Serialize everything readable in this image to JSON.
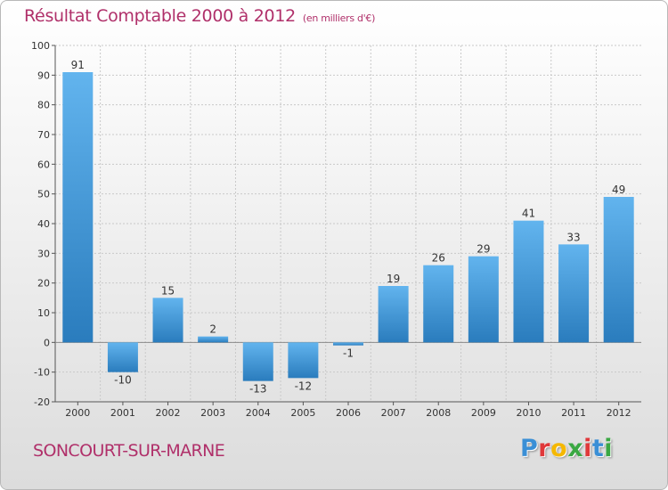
{
  "header": {
    "title": "Résultat Comptable 2000 à 2012",
    "subtitle": "(en milliers d'€)"
  },
  "footer": {
    "city": "SONCOURT-SUR-MARNE",
    "logo_letters": [
      "P",
      "r",
      "o",
      "x",
      "i",
      "t",
      "i"
    ],
    "logo_colors": [
      "#3a8fd6",
      "#e0383a",
      "#f5b800",
      "#3aa843",
      "#e0383a",
      "#3a8fd6",
      "#3aa843"
    ]
  },
  "colors": {
    "bar_light": "#62b4ee",
    "bar_dark": "#2a7cbd",
    "title": "#b0306a",
    "axis_text": "#333333",
    "grid": "#c9c9c9"
  },
  "chart_data": {
    "type": "bar",
    "title": "Résultat Comptable 2000 à 2012",
    "subtitle": "(en milliers d'€)",
    "xlabel": "",
    "ylabel": "",
    "categories": [
      "2000",
      "2001",
      "2002",
      "2003",
      "2004",
      "2005",
      "2006",
      "2007",
      "2008",
      "2009",
      "2010",
      "2011",
      "2012"
    ],
    "values": [
      91,
      -10,
      15,
      2,
      -13,
      -12,
      -1,
      19,
      26,
      29,
      41,
      33,
      49
    ],
    "labels": [
      "91",
      "-10",
      "15",
      "2",
      "-13",
      "-12",
      "-1",
      "19",
      "26",
      "29",
      "41",
      "33",
      "49"
    ],
    "ylim": [
      -20,
      100
    ],
    "yticks": [
      -20,
      -10,
      0,
      10,
      20,
      30,
      40,
      50,
      60,
      70,
      80,
      90,
      100
    ],
    "grid": true,
    "legend": "none"
  }
}
